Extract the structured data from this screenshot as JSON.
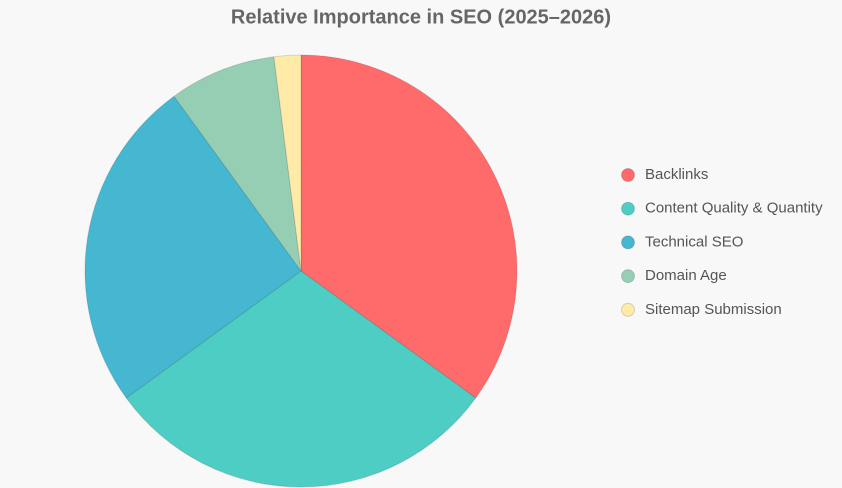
{
  "chart_data": {
    "type": "pie",
    "title": "Relative Importance in SEO (2025–2026)",
    "categories": [
      "Backlinks",
      "Content Quality & Quantity",
      "Technical SEO",
      "Domain Age",
      "Sitemap Submission"
    ],
    "values": [
      35,
      30,
      25,
      8,
      2
    ],
    "colors": [
      "#FF6B6B",
      "#4ECDC4",
      "#45B7D1",
      "#96CEB4",
      "#FFEAA7"
    ],
    "legend": "right"
  }
}
